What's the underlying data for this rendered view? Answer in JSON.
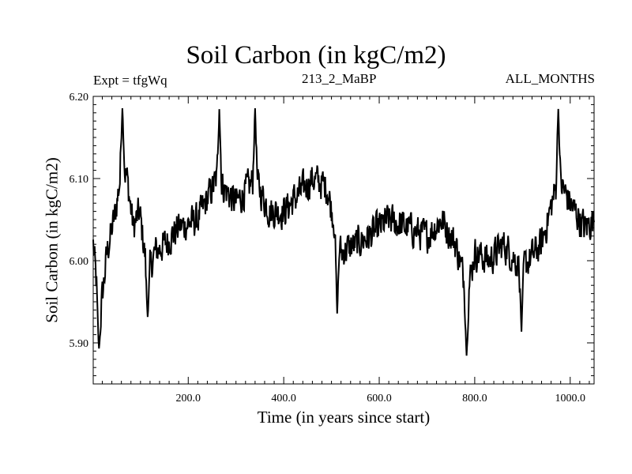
{
  "chart_data": {
    "type": "line",
    "title": "Soil Carbon (in kgC/m2)",
    "left_annotation": "Expt = tfgWq",
    "center_annotation": "213_2_MaBP",
    "right_annotation": "ALL_MONTHS",
    "xlabel": "Time (in years since start)",
    "ylabel": "Soil Carbon (in kgC/m2)",
    "xlim": [
      1,
      1050
    ],
    "ylim": [
      5.85,
      6.2
    ],
    "x_ticks": [
      200,
      400,
      600,
      800,
      1000
    ],
    "x_tick_labels": [
      "200.0",
      "400.0",
      "600.0",
      "800.0",
      "1000.0"
    ],
    "y_ticks": [
      5.9,
      6.0,
      6.1,
      6.2
    ],
    "y_tick_labels": [
      "5.90",
      "6.00",
      "6.10",
      "6.20"
    ],
    "grid": false,
    "color": "#000000",
    "series": [
      {
        "name": "Soil Carbon",
        "x": [
          1,
          8,
          15,
          30,
          48,
          62,
          72,
          85,
          98,
          115,
          130,
          150,
          180,
          220,
          260,
          300,
          340,
          370,
          400,
          430,
          460,
          490,
          520,
          550,
          580,
          620,
          660,
          700,
          730,
          760,
          785,
          800,
          830,
          860,
          900,
          940,
          975,
          1000,
          1030,
          1050
        ],
        "values": [
          6.02,
          5.97,
          5.93,
          6.01,
          6.06,
          6.12,
          6.1,
          6.04,
          6.06,
          5.98,
          6.01,
          6.02,
          6.04,
          6.05,
          6.1,
          6.07,
          6.1,
          6.06,
          6.06,
          6.08,
          6.1,
          6.09,
          6.01,
          6.02,
          6.03,
          6.05,
          6.04,
          6.03,
          6.05,
          6.02,
          5.96,
          6.01,
          6.0,
          6.02,
          5.99,
          6.02,
          6.1,
          6.07,
          6.04,
          6.05
        ],
        "extremes": [
          {
            "x": 13,
            "y": 5.89
          },
          {
            "x": 62,
            "y": 6.19
          },
          {
            "x": 115,
            "y": 5.93
          },
          {
            "x": 265,
            "y": 6.19
          },
          {
            "x": 340,
            "y": 6.19
          },
          {
            "x": 512,
            "y": 5.93
          },
          {
            "x": 783,
            "y": 5.88
          },
          {
            "x": 898,
            "y": 5.91
          },
          {
            "x": 975,
            "y": 6.19
          }
        ],
        "noise_amplitude": 0.028
      }
    ]
  }
}
